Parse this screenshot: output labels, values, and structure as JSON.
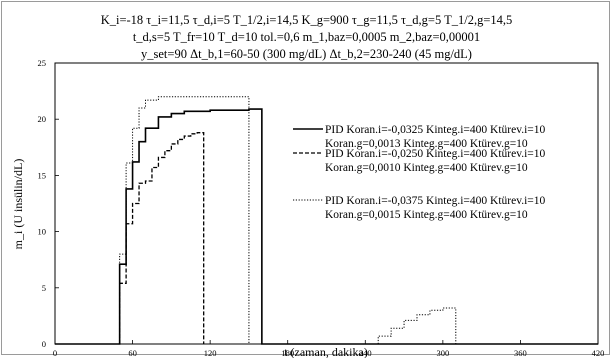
{
  "header": {
    "line1": "K_i=-18 τ_i=11,5 τ_d,i=5 T_1/2,i=14,5 K_g=900 τ_g=11,5 τ_d,g=5 T_1/2,g=14,5",
    "line2": "t_d,s=5 T_fr=10 T_d=10 tol.=0,6 m_1,baz=0,0005 m_2,baz=0,00001",
    "line3": "y_set=90 Δt_b,1=60-50 (300 mg/dL) Δt_b,2=230-240 (45 mg/dL)"
  },
  "chart_data": {
    "type": "line",
    "step": true,
    "xlabel": "t (zaman, dakika)",
    "ylabel": "m_i (U insülin/dL)",
    "xlim": [
      0,
      420
    ],
    "ylim": [
      0,
      25
    ],
    "xticks": [
      "0",
      "60",
      "120",
      "180",
      "240",
      "300",
      "360",
      "420"
    ],
    "yticks": [
      "0",
      "5",
      "10",
      "15",
      "20",
      "25"
    ],
    "legend_position": "right",
    "series": [
      {
        "name": "PID Koran.i=-0,0325 Kinteg.i=400 Ktürev.i=10",
        "name2": "Koran.g=0,0013 Kinteg.g=400 Ktürev.g=10",
        "style": "solid",
        "color": "#000000",
        "points": [
          [
            0,
            0
          ],
          [
            50,
            0
          ],
          [
            50,
            7.1
          ],
          [
            55,
            7.1
          ],
          [
            55,
            13.8
          ],
          [
            60,
            13.8
          ],
          [
            60,
            16.2
          ],
          [
            65,
            16.2
          ],
          [
            65,
            18.0
          ],
          [
            70,
            18.0
          ],
          [
            70,
            19.2
          ],
          [
            80,
            19.2
          ],
          [
            80,
            20.2
          ],
          [
            90,
            20.2
          ],
          [
            90,
            20.5
          ],
          [
            100,
            20.5
          ],
          [
            100,
            20.7
          ],
          [
            120,
            20.7
          ],
          [
            120,
            20.8
          ],
          [
            150,
            20.8
          ],
          [
            150,
            20.9
          ],
          [
            160,
            20.9
          ],
          [
            160,
            0
          ],
          [
            420,
            0
          ]
        ]
      },
      {
        "name": "PID Koran.i=-0,0250 Kinteg.i=400 Ktürev.i=10",
        "name2": "Koran.g=0,0010 Kinteg.g=400 Ktürev.g=10",
        "style": "dashed",
        "color": "#000000",
        "points": [
          [
            50,
            0
          ],
          [
            50,
            5.4
          ],
          [
            55,
            5.4
          ],
          [
            55,
            10.7
          ],
          [
            60,
            10.7
          ],
          [
            60,
            12.5
          ],
          [
            65,
            12.5
          ],
          [
            65,
            14.3
          ],
          [
            70,
            14.3
          ],
          [
            70,
            14.5
          ],
          [
            75,
            14.5
          ],
          [
            75,
            15.7
          ],
          [
            80,
            15.7
          ],
          [
            80,
            16.6
          ],
          [
            85,
            16.6
          ],
          [
            85,
            17.2
          ],
          [
            90,
            17.2
          ],
          [
            90,
            17.8
          ],
          [
            95,
            17.8
          ],
          [
            95,
            18.2
          ],
          [
            100,
            18.2
          ],
          [
            100,
            18.5
          ],
          [
            105,
            18.5
          ],
          [
            105,
            18.7
          ],
          [
            110,
            18.7
          ],
          [
            110,
            18.8
          ],
          [
            115,
            18.8
          ],
          [
            115,
            0
          ]
        ]
      },
      {
        "name": "PID Koran.i=-0,0375 Kinteg.i=400 Ktürev.i=10",
        "name2": "Koran.g=0,0015 Kinteg.g=400 Ktürev.g=10",
        "style": "dotted",
        "color": "#000000",
        "points": [
          [
            50,
            0
          ],
          [
            50,
            8.0
          ],
          [
            55,
            8.0
          ],
          [
            55,
            16.1
          ],
          [
            60,
            16.1
          ],
          [
            60,
            19.2
          ],
          [
            65,
            19.2
          ],
          [
            65,
            21.0
          ],
          [
            70,
            21.0
          ],
          [
            70,
            21.7
          ],
          [
            80,
            21.7
          ],
          [
            80,
            22.0
          ],
          [
            150,
            22.0
          ],
          [
            150,
            0
          ],
          [
            250,
            0
          ],
          [
            250,
            0.7
          ],
          [
            260,
            0.7
          ],
          [
            260,
            1.4
          ],
          [
            270,
            1.4
          ],
          [
            270,
            2.1
          ],
          [
            280,
            2.1
          ],
          [
            280,
            2.6
          ],
          [
            290,
            2.6
          ],
          [
            290,
            3.0
          ],
          [
            300,
            3.0
          ],
          [
            300,
            3.2
          ],
          [
            310,
            3.2
          ],
          [
            310,
            0
          ]
        ]
      }
    ]
  }
}
